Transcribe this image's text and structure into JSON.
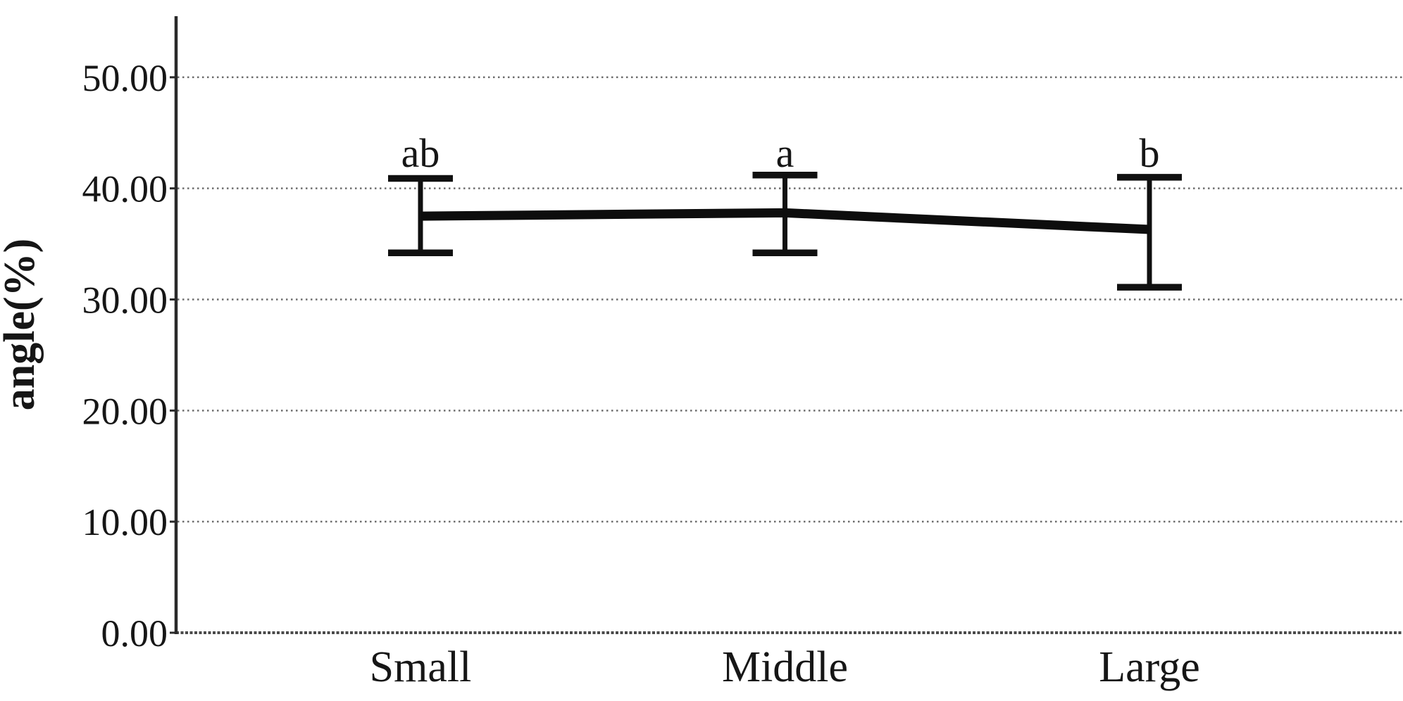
{
  "chart_data": {
    "type": "line",
    "title": "",
    "categories": [
      "Small",
      "Middle",
      "Large"
    ],
    "series": [
      {
        "name": "angle",
        "values": [
          37.5,
          37.8,
          36.3
        ],
        "error_low": [
          34.2,
          34.2,
          31.1
        ],
        "error_high": [
          40.9,
          41.2,
          41.0
        ]
      }
    ],
    "significance_letters": [
      "ab",
      "a",
      "b"
    ],
    "xlabel": "",
    "ylabel": "angle(%)",
    "ylim": [
      0,
      55.5
    ],
    "yticks": [
      0,
      10,
      20,
      30,
      40,
      50
    ],
    "ytick_labels": [
      "0.00",
      "10.00",
      "20.00",
      "30.00",
      "40.00",
      "50.00"
    ],
    "grid": "horizontal-dotted",
    "legend": "none",
    "colors": {
      "line": "#0d0d0d",
      "error_bar": "#101010",
      "gridline": "#6e6e6e",
      "baseline": "#4a4a4a",
      "axis": "#2a2a2a",
      "text": "#161616",
      "background": "#ffffff"
    }
  }
}
